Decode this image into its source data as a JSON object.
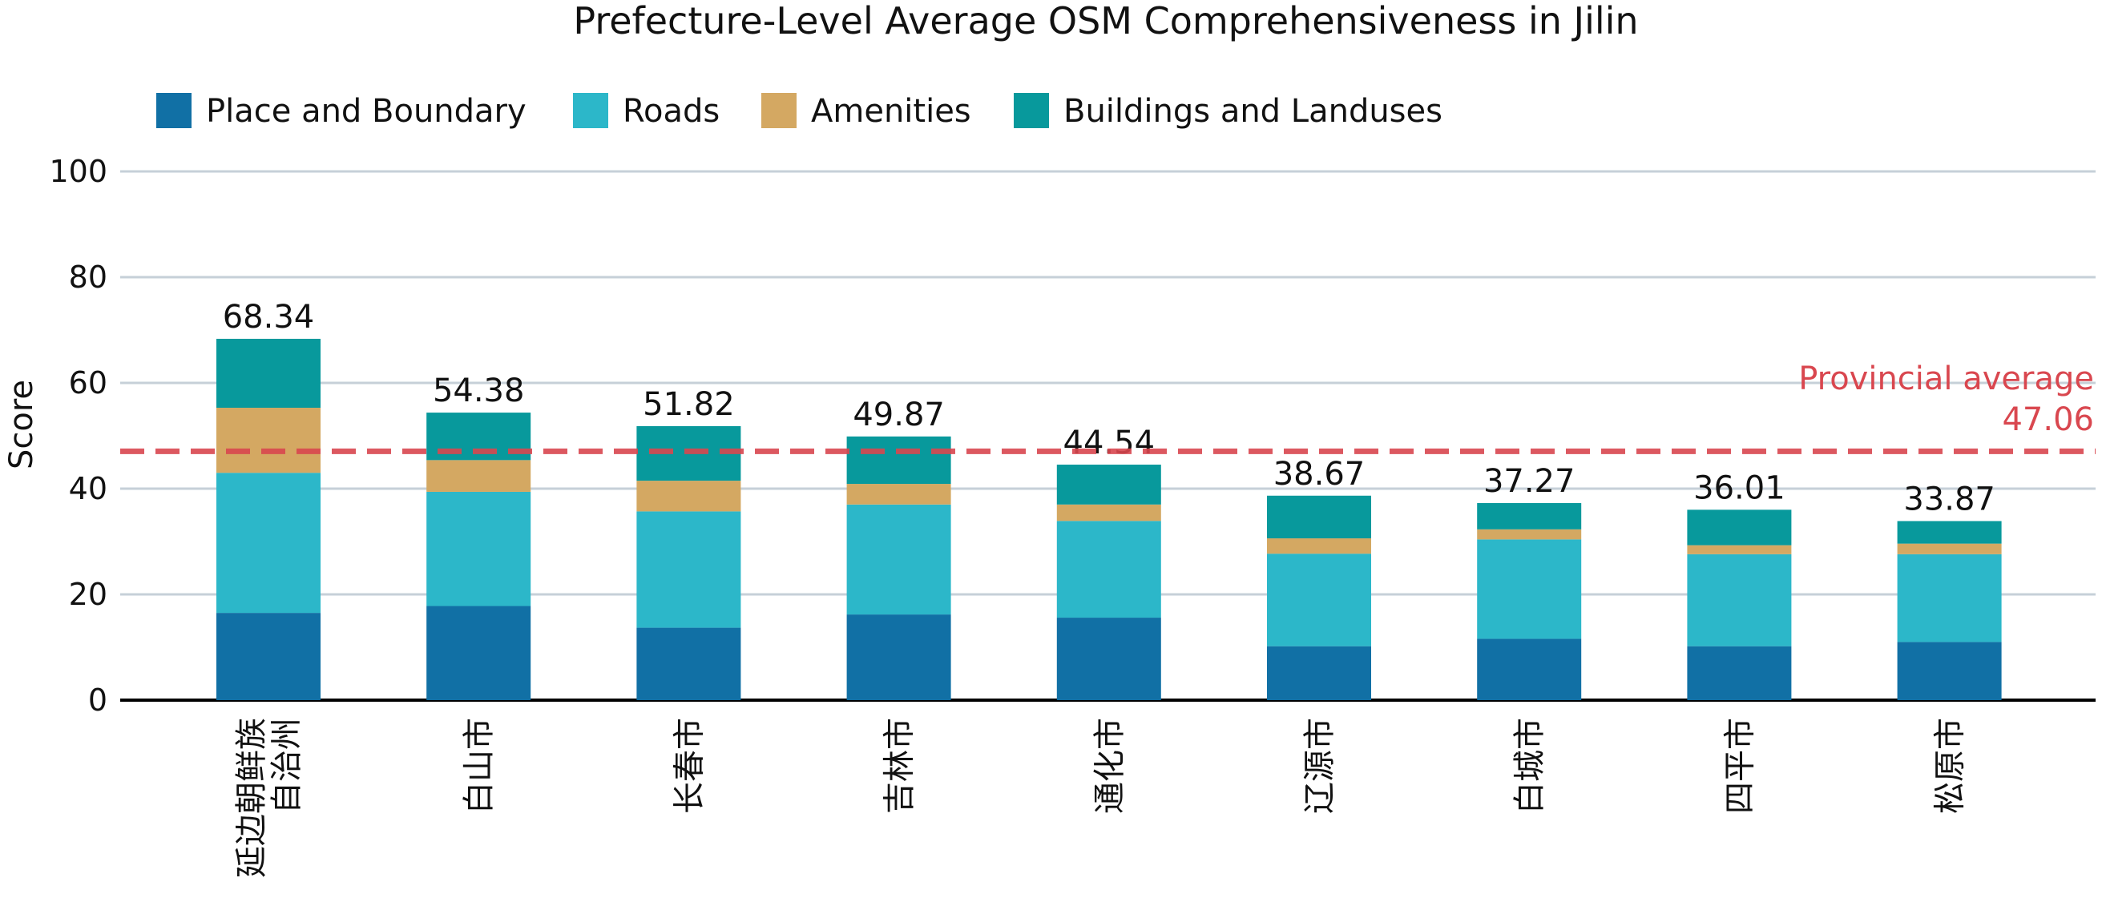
{
  "chart_data": {
    "type": "bar",
    "stacked": true,
    "title": "Prefecture-Level Average OSM Comprehensiveness in Jilin",
    "xlabel": "",
    "ylabel": "Score",
    "ylim": [
      0,
      100
    ],
    "yticks": [
      0,
      20,
      40,
      60,
      80,
      100
    ],
    "grid": true,
    "legend_position": "top-left",
    "categories": [
      "延边朝鲜族\n自治州",
      "白山市",
      "长春市",
      "吉林市",
      "通化市",
      "辽源市",
      "白城市",
      "四平市",
      "松原市"
    ],
    "series": [
      {
        "name": "Place and Boundary",
        "color": "#1170a5",
        "values": [
          16.5,
          17.8,
          13.7,
          16.2,
          15.6,
          10.2,
          11.6,
          10.2,
          11.0
        ]
      },
      {
        "name": "Roads",
        "color": "#2cb7c9",
        "values": [
          26.5,
          21.6,
          22.0,
          20.8,
          18.3,
          17.5,
          18.8,
          17.4,
          16.6
        ]
      },
      {
        "name": "Amenities",
        "color": "#d4a862",
        "values": [
          12.3,
          6.0,
          5.8,
          3.9,
          3.1,
          2.9,
          1.9,
          1.7,
          2.0
        ]
      },
      {
        "name": "Buildings and Landuses",
        "color": "#08999c",
        "values": [
          13.04,
          8.98,
          10.32,
          8.97,
          7.54,
          8.07,
          4.97,
          6.71,
          4.27
        ]
      }
    ],
    "totals": [
      68.34,
      54.38,
      51.82,
      49.87,
      44.54,
      38.67,
      37.27,
      36.01,
      33.87
    ],
    "total_labels": [
      "68.34",
      "54.38",
      "51.82",
      "49.87",
      "44.54",
      "38.67",
      "37.27",
      "36.01",
      "33.87"
    ],
    "reference_line": {
      "value": 47.06,
      "label_line1": "Provincial average",
      "label_line2": "47.06",
      "color": "#d9474f"
    },
    "colors": {
      "grid": "#c6d0d8",
      "axis": "#000000",
      "text": "#111111"
    }
  }
}
